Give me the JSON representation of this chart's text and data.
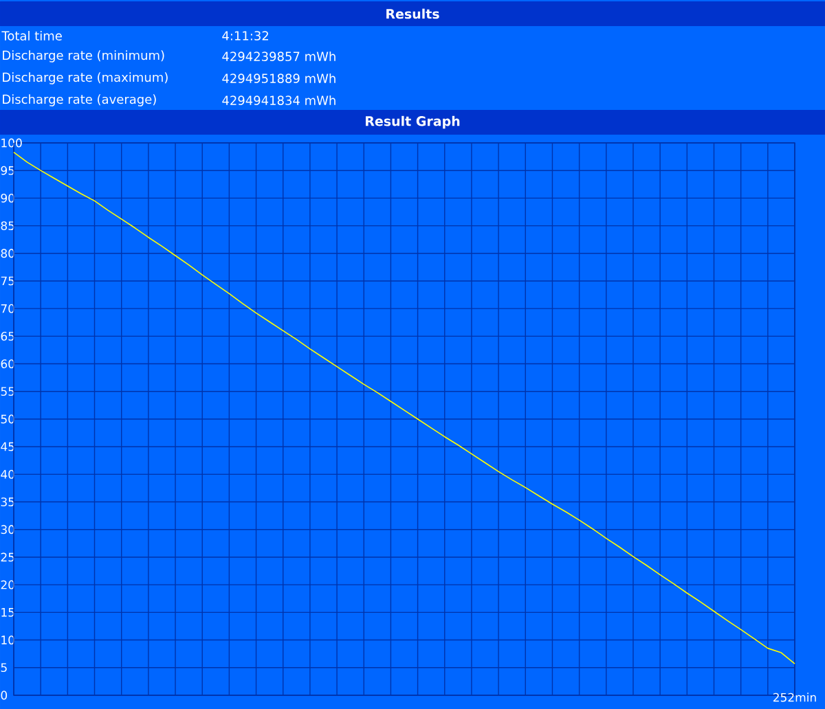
{
  "chart_data": {
    "type": "line",
    "title": "Results",
    "subtitle": "Result Graph",
    "annotations": [
      "Total time",
      "4:11:32",
      "Discharge rate (minimum)",
      "4294239857 mWh",
      "Discharge rate (maximum)",
      "4294951889 mWh",
      "Discharge rate (average)",
      "4294941834 mWh"
    ],
    "categories": [
      null,
      null,
      null,
      null,
      null,
      null,
      null,
      null,
      null,
      null,
      null,
      null,
      null,
      null,
      null,
      null,
      null,
      null,
      null,
      null,
      null,
      null,
      null,
      null,
      null,
      null,
      null,
      null,
      null,
      null,
      null,
      null,
      null,
      null,
      null,
      null,
      null,
      null,
      null,
      null,
      null,
      null,
      null,
      null,
      null,
      null,
      null,
      null,
      null,
      null,
      null,
      null,
      null,
      null,
      null,
      null,
      null,
      null,
      "252min"
    ],
    "values": [
      98.3,
      96.5,
      95.0,
      93.6,
      92.2,
      90.8,
      89.5,
      87.8,
      86.2,
      84.6,
      82.9,
      81.3,
      79.6,
      77.9,
      76.1,
      74.4,
      72.7,
      70.9,
      69.2,
      67.6,
      66.0,
      64.4,
      62.7,
      61.1,
      59.5,
      57.9,
      56.3,
      54.8,
      53.2,
      51.6,
      50.0,
      48.4,
      46.8,
      45.3,
      43.7,
      42.1,
      40.5,
      39.0,
      37.6,
      36.1,
      34.6,
      33.2,
      31.7,
      30.1,
      28.4,
      26.8,
      25.1,
      23.5,
      21.8,
      20.2,
      18.5,
      16.9,
      15.2,
      13.5,
      11.9,
      10.2,
      8.5,
      7.7,
      5.7
    ],
    "color": "#ffff00",
    "ylim": [
      0,
      100
    ],
    "yticks": [
      0,
      5,
      10,
      15,
      20,
      25,
      30,
      35,
      40,
      45,
      50,
      55,
      60,
      65,
      70,
      75,
      80,
      85,
      90,
      95,
      100
    ],
    "grid": true
  }
}
